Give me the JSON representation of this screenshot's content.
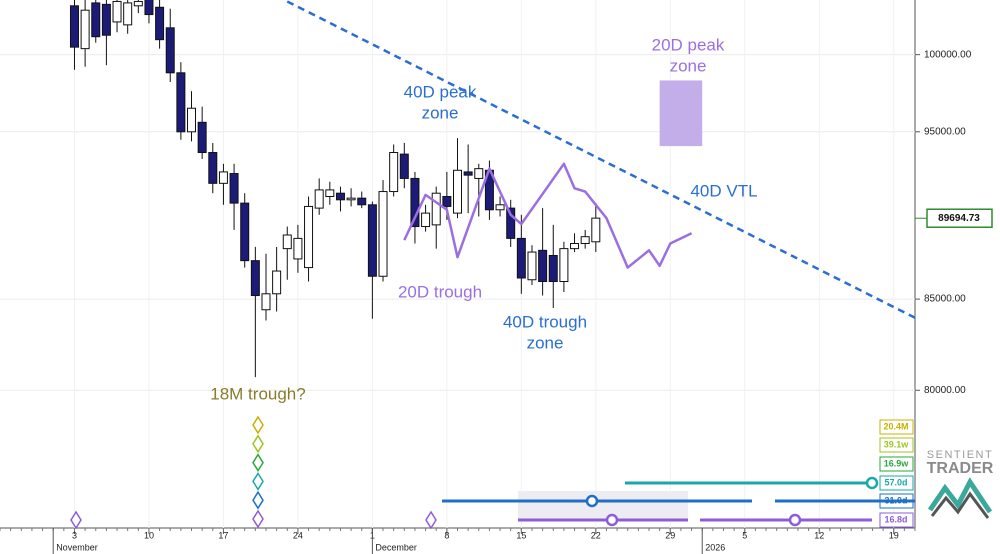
{
  "chart_data": {
    "type": "candlestick",
    "x": [
      "11-03",
      "11-04",
      "11-05",
      "11-06",
      "11-07",
      "11-08",
      "11-09",
      "11-10",
      "11-11",
      "11-12",
      "11-13",
      "11-14",
      "11-15",
      "11-16",
      "11-17",
      "11-18",
      "11-19",
      "11-20",
      "11-21",
      "11-22",
      "11-23",
      "11-24",
      "11-25",
      "11-26",
      "11-27",
      "11-28",
      "11-29",
      "11-30",
      "12-01",
      "12-02",
      "12-03",
      "12-04",
      "12-05",
      "12-06",
      "12-07",
      "12-08",
      "12-09",
      "12-10",
      "12-11",
      "12-12",
      "12-13",
      "12-14",
      "12-15",
      "12-16",
      "12-17",
      "12-18",
      "12-19",
      "12-20",
      "12-21",
      "12-22"
    ],
    "open": [
      103300,
      100400,
      103500,
      103400,
      102200,
      102000,
      103300,
      103800,
      103200,
      101800,
      98800,
      95000,
      95600,
      93700,
      91800,
      92400,
      90600,
      87200,
      84400,
      85300,
      87900,
      87300,
      86800,
      90300,
      91000,
      91200,
      90800,
      90900,
      90500,
      86300,
      91300,
      93600,
      92100,
      89200,
      89300,
      91000,
      90000,
      92500,
      92100,
      92600,
      90200,
      90300,
      88500,
      86100,
      87800,
      87500,
      86000,
      87900,
      88200,
      88300
    ],
    "high": [
      103800,
      103700,
      103800,
      103700,
      103800,
      103700,
      103800,
      103800,
      103700,
      103100,
      99500,
      97600,
      96600,
      94300,
      93000,
      93000,
      91200,
      88000,
      87600,
      88000,
      89200,
      89300,
      91000,
      92100,
      91900,
      91600,
      91500,
      91300,
      90700,
      92000,
      94200,
      94300,
      92500,
      90500,
      91600,
      92500,
      94600,
      94200,
      93000,
      93200,
      91000,
      90800,
      89900,
      88100,
      90300,
      89300,
      88300,
      88800,
      89000,
      90600
    ],
    "low": [
      99000,
      99200,
      100800,
      99300,
      101500,
      101400,
      102800,
      102100,
      100400,
      98200,
      94500,
      94400,
      93300,
      91200,
      90500,
      89000,
      86800,
      80700,
      83800,
      84300,
      86100,
      86500,
      86000,
      89900,
      90500,
      90100,
      90400,
      90300,
      83900,
      86000,
      91000,
      91500,
      88200,
      88900,
      87900,
      89600,
      89700,
      90000,
      89800,
      89600,
      89800,
      88000,
      85300,
      85800,
      85200,
      84500,
      85400,
      87700,
      87900,
      87700
    ],
    "close": [
      100500,
      103000,
      101200,
      101300,
      103600,
      103500,
      103600,
      102700,
      101000,
      98800,
      95000,
      96500,
      93700,
      91800,
      92500,
      90600,
      87200,
      85200,
      85300,
      86600,
      88700,
      88500,
      90400,
      91400,
      91400,
      90800,
      90900,
      90500,
      86300,
      91300,
      93700,
      92100,
      89200,
      90000,
      91200,
      90400,
      92600,
      92300,
      92700,
      90200,
      90500,
      88500,
      86200,
      87700,
      86000,
      86000,
      87900,
      88200,
      88600,
      89700
    ],
    "up_color": "#ffffff",
    "down_color": "#1c1c78",
    "last_price": 89694.73,
    "xlim": [
      "10-27",
      "01-21"
    ],
    "xticks": [
      {
        "value": "11-03",
        "label": "3"
      },
      {
        "value": "11-10",
        "label": "10"
      },
      {
        "value": "11-17",
        "label": "17"
      },
      {
        "value": "11-24",
        "label": "24"
      },
      {
        "value": "12-01",
        "label": "1"
      },
      {
        "value": "12-08",
        "label": "8"
      },
      {
        "value": "12-15",
        "label": "15"
      },
      {
        "value": "12-22",
        "label": "22"
      },
      {
        "value": "12-29",
        "label": "29"
      },
      {
        "value": "01-05",
        "label": "5"
      },
      {
        "value": "01-12",
        "label": "12"
      },
      {
        "value": "01-19",
        "label": "19"
      }
    ],
    "months": [
      {
        "value": "11-01",
        "label": "November"
      },
      {
        "value": "12-01",
        "label": "December"
      },
      {
        "value": "01-01",
        "label": "2026"
      }
    ],
    "ylim": [
      73000,
      103700
    ],
    "yticks": [
      {
        "value": 80000,
        "label": "80000.00"
      },
      {
        "value": 85000,
        "label": "85000.00"
      },
      {
        "value": 95000,
        "label": "95000.00"
      },
      {
        "value": 100000,
        "label": "100000.00"
      }
    ],
    "log_scale": true,
    "grid": true,
    "cycle_line": {
      "color": "#9b6fe0",
      "x": [
        "12-04",
        "12-06",
        "12-08",
        "12-09",
        "12-12",
        "12-14",
        "12-15",
        "12-19",
        "12-20",
        "12-21",
        "12-23",
        "12-25",
        "12-27",
        "12-28",
        "12-29",
        "12-31"
      ],
      "values": [
        88400,
        91100,
        90200,
        87400,
        92700,
        89900,
        89350,
        93000,
        91500,
        91300,
        89700,
        86800,
        87800,
        86900,
        88200,
        88800
      ]
    },
    "trendline": {
      "color": "#2a6fcf",
      "x": [
        "11-23",
        "01-21"
      ],
      "values": [
        103600,
        83950
      ]
    },
    "zone": {
      "color": "#c3aeea",
      "x": [
        "12-28",
        "01-01"
      ],
      "values": [
        94100,
        98300
      ]
    },
    "annotations": [
      {
        "lines": [
          "20D peak",
          "zone"
        ],
        "color": "#9b6fe0"
      },
      {
        "lines": [
          "40D peak",
          "zone"
        ],
        "color": "#2a6fcf"
      },
      {
        "lines": [
          "40D VTL"
        ],
        "color": "#2a6fcf"
      },
      {
        "lines": [
          "20D trough"
        ],
        "color": "#9b6fe0"
      },
      {
        "lines": [
          "40D trough",
          "zone"
        ],
        "color": "#2a6fcf"
      },
      {
        "lines": [
          "18M trough?"
        ],
        "color": "#8a7a2a"
      }
    ],
    "cycles": [
      {
        "label": "20.4M",
        "color": "#c8b000"
      },
      {
        "label": "39.1w",
        "color": "#9cc520"
      },
      {
        "label": "16.9w",
        "color": "#2aa83a"
      },
      {
        "label": "57.0d",
        "color": "#1aa8a8"
      },
      {
        "label": "31.0d",
        "color": "#1f6fc8"
      },
      {
        "label": "16.8d",
        "color": "#8e5cd8"
      }
    ]
  },
  "logo": {
    "top": "SENTIENT",
    "bottom": "TRADER"
  }
}
